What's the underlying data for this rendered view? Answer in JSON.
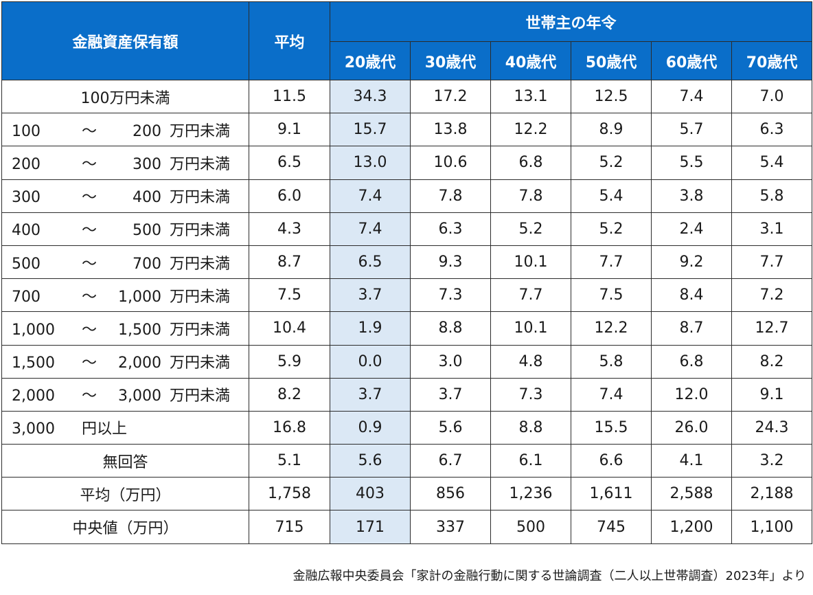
{
  "chart_data": {
    "type": "table",
    "header": {
      "row_label": "金融資産保有額",
      "average": "平均",
      "group": "世帯主の年令",
      "ages": [
        "20歳代",
        "30歳代",
        "40歳代",
        "50歳代",
        "60歳代",
        "70歳代"
      ]
    },
    "rows": [
      {
        "label": {
          "text": "100万円未満"
        },
        "values": [
          "11.5",
          "34.3",
          "17.2",
          "13.1",
          "12.5",
          "7.4",
          "7.0"
        ]
      },
      {
        "label": {
          "lo": "100",
          "tilde": "～",
          "hi": "200",
          "unit": "万円未満"
        },
        "values": [
          "9.1",
          "15.7",
          "13.8",
          "12.2",
          "8.9",
          "5.7",
          "6.3"
        ]
      },
      {
        "label": {
          "lo": "200",
          "tilde": "～",
          "hi": "300",
          "unit": "万円未満"
        },
        "values": [
          "6.5",
          "13.0",
          "10.6",
          "6.8",
          "5.2",
          "5.5",
          "5.4"
        ]
      },
      {
        "label": {
          "lo": "300",
          "tilde": "～",
          "hi": "400",
          "unit": "万円未満"
        },
        "values": [
          "6.0",
          "7.4",
          "7.8",
          "7.8",
          "5.4",
          "3.8",
          "5.8"
        ]
      },
      {
        "label": {
          "lo": "400",
          "tilde": "～",
          "hi": "500",
          "unit": "万円未満"
        },
        "values": [
          "4.3",
          "7.4",
          "6.3",
          "5.2",
          "5.2",
          "2.4",
          "3.1"
        ]
      },
      {
        "label": {
          "lo": "500",
          "tilde": "～",
          "hi": "700",
          "unit": "万円未満"
        },
        "values": [
          "8.7",
          "6.5",
          "9.3",
          "10.1",
          "7.7",
          "9.2",
          "7.7"
        ]
      },
      {
        "label": {
          "lo": "700",
          "tilde": "～",
          "hi": "1,000",
          "unit": "万円未満"
        },
        "values": [
          "7.5",
          "3.7",
          "7.3",
          "7.7",
          "7.5",
          "8.4",
          "7.2"
        ]
      },
      {
        "label": {
          "lo": "1,000",
          "tilde": "～",
          "hi": "1,500",
          "unit": "万円未満"
        },
        "values": [
          "10.4",
          "1.9",
          "8.8",
          "10.1",
          "12.2",
          "8.7",
          "12.7"
        ]
      },
      {
        "label": {
          "lo": "1,500",
          "tilde": "～",
          "hi": "2,000",
          "unit": "万円未満"
        },
        "values": [
          "5.9",
          "0.0",
          "3.0",
          "4.8",
          "5.8",
          "6.8",
          "8.2"
        ]
      },
      {
        "label": {
          "lo": "2,000",
          "tilde": "～",
          "hi": "3,000",
          "unit": "万円未満"
        },
        "values": [
          "8.2",
          "3.7",
          "3.7",
          "7.3",
          "7.4",
          "12.0",
          "9.1"
        ]
      },
      {
        "label": {
          "lo": "3,000",
          "plus": "円以上"
        },
        "values": [
          "16.8",
          "0.9",
          "5.6",
          "8.8",
          "15.5",
          "26.0",
          "24.3"
        ]
      },
      {
        "label": {
          "text": "無回答"
        },
        "values": [
          "5.1",
          "5.6",
          "6.7",
          "6.1",
          "6.6",
          "4.1",
          "3.2"
        ]
      },
      {
        "label": {
          "text": "平均（万円）"
        },
        "values": [
          "1,758",
          "403",
          "856",
          "1,236",
          "1,611",
          "2,588",
          "2,188"
        ]
      },
      {
        "label": {
          "text": "中央値（万円）"
        },
        "values": [
          "715",
          "171",
          "337",
          "500",
          "745",
          "1,200",
          "1,100"
        ]
      }
    ],
    "highlight_column": "20歳代",
    "colors": {
      "header_bg": "#0a6ec9",
      "header_text": "#ffffff",
      "highlight_bg": "#dbe8f5",
      "border": "#2b2b2b"
    },
    "source": "金融広報中央委員会「家計の金融行動に関する世論調査（二人以上世帯調査）2023年」より"
  }
}
